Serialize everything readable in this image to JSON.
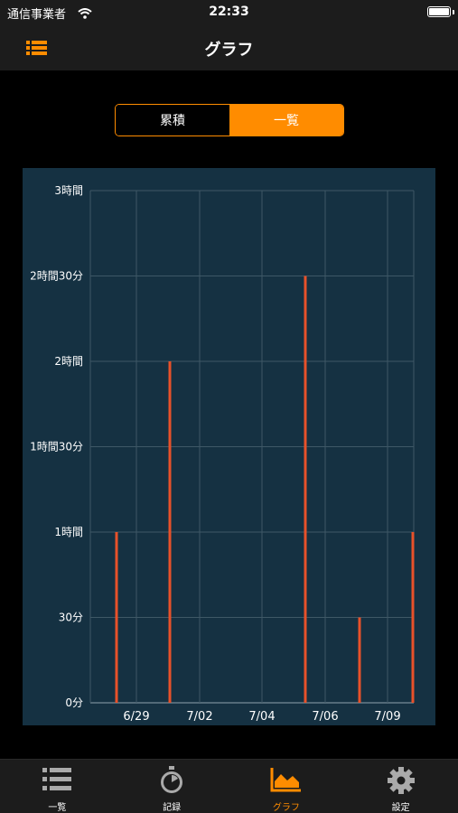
{
  "status": {
    "carrier": "通信事業者",
    "time": "22:33"
  },
  "nav": {
    "title": "グラフ",
    "menu_icon": "list-icon",
    "accent": "#ff8c00"
  },
  "segments": [
    {
      "label": "累積",
      "active": false
    },
    {
      "label": "一覧",
      "active": true
    }
  ],
  "chart_data": {
    "type": "bar",
    "x_tick_labels": [
      "6/29",
      "7/02",
      "7/04",
      "7/06",
      "7/09"
    ],
    "y_tick_labels": [
      "0分",
      "30分",
      "1時間",
      "1時間30分",
      "2時間",
      "2時間30分",
      "3時間"
    ],
    "ylim_minutes": [
      0,
      180
    ],
    "grid": true,
    "bar_color": "#e8512a",
    "series": [
      {
        "date": "6/28",
        "minutes": 60
      },
      {
        "date": "6/30",
        "minutes": 120
      },
      {
        "date": "7/05",
        "minutes": 150
      },
      {
        "date": "7/07",
        "minutes": 30
      },
      {
        "date": "7/09",
        "minutes": 60
      }
    ]
  },
  "tabs": [
    {
      "label": "一覧",
      "icon": "list-icon",
      "active": false
    },
    {
      "label": "記録",
      "icon": "stopwatch-icon",
      "active": false
    },
    {
      "label": "グラフ",
      "icon": "area-chart-icon",
      "active": true
    },
    {
      "label": "設定",
      "icon": "gear-icon",
      "active": false
    }
  ]
}
